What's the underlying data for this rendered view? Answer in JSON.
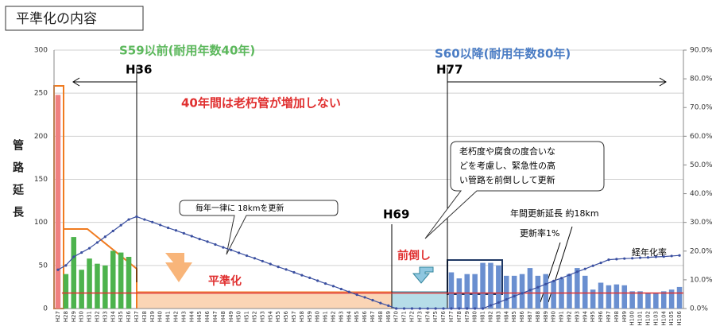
{
  "chart_data": {
    "type": "bar",
    "title": "平準化の内容",
    "y_label": "管路延長",
    "categories": [
      "H27",
      "H28",
      "H29",
      "H30",
      "H31",
      "H32",
      "H33",
      "H34",
      "H35",
      "H36",
      "H37",
      "H38",
      "H39",
      "H40",
      "H41",
      "H42",
      "H43",
      "H44",
      "H45",
      "H46",
      "H47",
      "H48",
      "H49",
      "H50",
      "H51",
      "H52",
      "H53",
      "H54",
      "H55",
      "H56",
      "H57",
      "H58",
      "H59",
      "H60",
      "H61",
      "H62",
      "H63",
      "H64",
      "H65",
      "H66",
      "H67",
      "H68",
      "H69",
      "H70",
      "H71",
      "H72",
      "H73",
      "H74",
      "H75",
      "H76",
      "H77",
      "H78",
      "H79",
      "H80",
      "H81",
      "H82",
      "H83",
      "H84",
      "H85",
      "H86",
      "H87",
      "H88",
      "H89",
      "H90",
      "H91",
      "H92",
      "H93",
      "H94",
      "H95",
      "H96",
      "H97",
      "H98",
      "H99",
      "H100",
      "H101",
      "H102",
      "H103",
      "H104",
      "H105",
      "H106"
    ],
    "series": [
      {
        "type": "bar",
        "color": "#f08080",
        "values": [
          248,
          null,
          null,
          null,
          null,
          null,
          null,
          null,
          null,
          null,
          null,
          null,
          null,
          null,
          null,
          null,
          null,
          null,
          null,
          null,
          null,
          null,
          null,
          null,
          null,
          null,
          null,
          null,
          null,
          null,
          null,
          null,
          null,
          null,
          null,
          null,
          null,
          null,
          null,
          null,
          null,
          null,
          null,
          null,
          null,
          null,
          null,
          null,
          null,
          null,
          null,
          null,
          null,
          null,
          null,
          null,
          null,
          null,
          null,
          null,
          null,
          null,
          null,
          null,
          null,
          null,
          null,
          null,
          null,
          null,
          null,
          null,
          null,
          null,
          null,
          null,
          null,
          null,
          null,
          null
        ]
      },
      {
        "type": "bar",
        "color": "#4db34d",
        "values": [
          null,
          40,
          83,
          45,
          58,
          52,
          50,
          67,
          65,
          60,
          null,
          null,
          null,
          null,
          null,
          null,
          null,
          null,
          null,
          null,
          null,
          null,
          null,
          null,
          null,
          null,
          null,
          null,
          null,
          null,
          null,
          null,
          null,
          null,
          null,
          null,
          null,
          null,
          null,
          null,
          null,
          null,
          null,
          null,
          null,
          null,
          null,
          null,
          null,
          null,
          null,
          null,
          null,
          null,
          null,
          null,
          null,
          null,
          null,
          null,
          null,
          null,
          null,
          null,
          null,
          null,
          null,
          null,
          null,
          null,
          null,
          null,
          null,
          null,
          null,
          null,
          null,
          null,
          null,
          null
        ]
      },
      {
        "type": "bar",
        "color": "#6a8fd0",
        "values": [
          null,
          null,
          null,
          null,
          null,
          null,
          null,
          null,
          null,
          null,
          null,
          null,
          null,
          null,
          null,
          null,
          null,
          null,
          null,
          null,
          null,
          null,
          null,
          null,
          null,
          null,
          null,
          null,
          null,
          null,
          null,
          null,
          null,
          null,
          null,
          null,
          null,
          null,
          null,
          null,
          null,
          null,
          null,
          null,
          null,
          null,
          null,
          null,
          null,
          null,
          42,
          35,
          40,
          40,
          53,
          53,
          50,
          38,
          38,
          40,
          47,
          38,
          40,
          32,
          35,
          40,
          47,
          38,
          22,
          30,
          27,
          28,
          27,
          20,
          20,
          18,
          18,
          20,
          22,
          25
        ]
      },
      {
        "type": "line",
        "name": "経年化率",
        "axis": "y2",
        "color": "#3a4fa0",
        "values": [
          13.5,
          15,
          18,
          19.5,
          21,
          23,
          25,
          27,
          29,
          31,
          32,
          31.0,
          30.1,
          29.1,
          28.1,
          27.2,
          26.2,
          25.2,
          24.2,
          23.3,
          22.3,
          21.3,
          20.4,
          19.4,
          18.4,
          17.5,
          16.5,
          15.5,
          14.5,
          13.6,
          12.6,
          11.6,
          10.7,
          9.7,
          8.7,
          7.8,
          6.8,
          5.8,
          4.8,
          3.9,
          2.9,
          1.9,
          1.0,
          0,
          0,
          0,
          0,
          0,
          0,
          0,
          0,
          0,
          0,
          0,
          0,
          1.1,
          2.1,
          3.2,
          4.3,
          5.3,
          6.4,
          7.4,
          8.5,
          9.6,
          10.6,
          11.7,
          12.8,
          13.8,
          14.9,
          15.9,
          17.0,
          17.2,
          17.4,
          17.5,
          17.7,
          17.8,
          18.0,
          18.1,
          18.3,
          18.5
        ]
      }
    ],
    "reference_line": {
      "value": 18,
      "color": "#e03030"
    },
    "ylim": [
      0,
      300
    ],
    "yticks": [
      0,
      50,
      100,
      150,
      200,
      250,
      300
    ],
    "y2lim": [
      0,
      90
    ],
    "y2ticks": [
      {
        "value": 0,
        "label": "0.0%"
      },
      {
        "value": 10,
        "label": "10.0%"
      },
      {
        "value": 20,
        "label": "20.0%"
      },
      {
        "value": 30,
        "label": "30.0%"
      },
      {
        "value": 40,
        "label": "40.0%"
      },
      {
        "value": 50,
        "label": "50.0%"
      },
      {
        "value": 60,
        "label": "60.0%"
      },
      {
        "value": 70,
        "label": "70.0%"
      },
      {
        "value": 80,
        "label": "80.0%"
      },
      {
        "value": 90,
        "label": "90.0%"
      }
    ],
    "grid": true,
    "annotations": {
      "era1": "S59以前(耐用年数40年)",
      "era2": "S60以降(耐用年数80年)",
      "h36": "H36",
      "h77": "H77",
      "h69": "H69",
      "no_increase": "40年間は老朽管が増加しない",
      "callout1": "毎年一律に 18kmを更新",
      "callout2": [
        "老朽度や腐食の度合いな",
        "どを考慮し、緊急性の高",
        "い管路を前倒しして更新"
      ],
      "annual": "年間更新延長 約18km",
      "rate": "更新率1%",
      "advance": "前倒し",
      "leveling": "平準化",
      "aging": "経年化率"
    }
  }
}
